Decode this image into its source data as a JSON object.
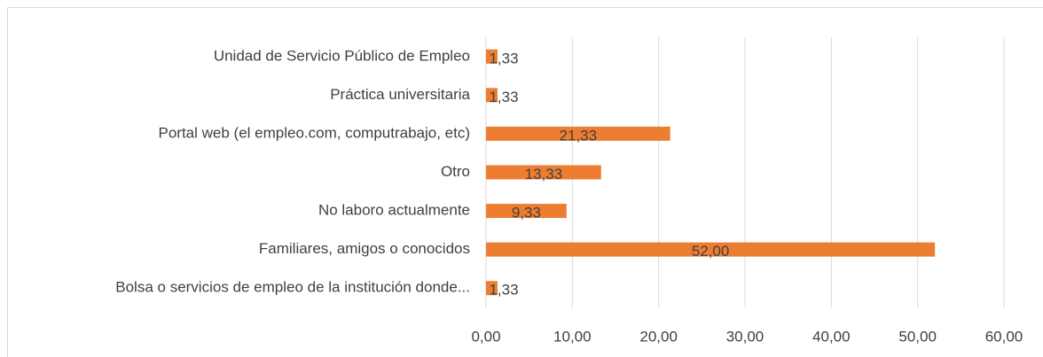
{
  "chart_data": {
    "type": "bar",
    "orientation": "horizontal",
    "categories": [
      "Unidad de Servicio Público de Empleo",
      "Práctica universitaria",
      "Portal web (el empleo.com, computrabajo, etc)",
      "Otro",
      "No laboro actualmente",
      "Familiares, amigos o conocidos",
      "Bolsa o servicios de empleo de la institución donde..."
    ],
    "values": [
      1.33,
      1.33,
      21.33,
      13.33,
      9.33,
      52.0,
      1.33
    ],
    "value_labels": [
      "1,33",
      "1,33",
      "21,33",
      "13,33",
      "9,33",
      "52,00",
      "1,33"
    ],
    "color": "#ed7d31",
    "xlim": [
      0,
      60
    ],
    "xticks": [
      {
        "value": 0,
        "label": "0,00"
      },
      {
        "value": 10,
        "label": "10,00"
      },
      {
        "value": 20,
        "label": "20,00"
      },
      {
        "value": 30,
        "label": "30,00"
      },
      {
        "value": 40,
        "label": "40,00"
      },
      {
        "value": 50,
        "label": "50,00"
      },
      {
        "value": 60,
        "label": "60,00"
      }
    ],
    "grid": true
  }
}
